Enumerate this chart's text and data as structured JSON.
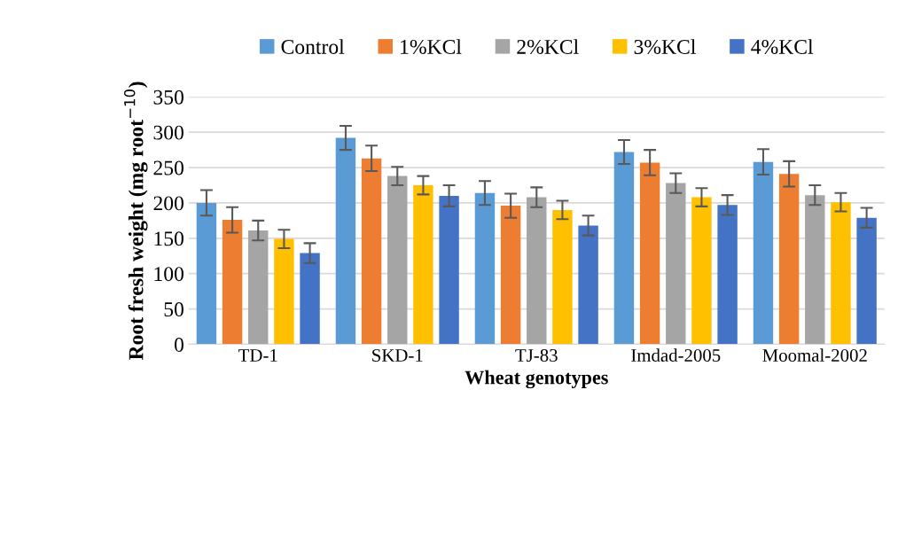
{
  "chart_data": {
    "type": "bar",
    "xlabel": "Wheat genotypes",
    "ylabel": "Root fresh weight (mg root$^{−10}$)",
    "categories": [
      "TD-1",
      "SKD-1",
      "TJ-83",
      "Imdad-2005",
      "Moomal-2002"
    ],
    "series": [
      {
        "name": "Control",
        "color": "#5b9bd5",
        "values": [
          200,
          292,
          214,
          272,
          258
        ],
        "errors": [
          18,
          17,
          17,
          17,
          18
        ]
      },
      {
        "name": "1%KCl",
        "color": "#ed7d31",
        "values": [
          176,
          263,
          196,
          257,
          241
        ],
        "errors": [
          18,
          18,
          17,
          18,
          18
        ]
      },
      {
        "name": "2%KCl",
        "color": "#a5a5a5",
        "values": [
          161,
          238,
          208,
          228,
          211
        ],
        "errors": [
          14,
          13,
          14,
          14,
          14
        ]
      },
      {
        "name": "3%KCl",
        "color": "#ffc000",
        "values": [
          149,
          225,
          190,
          208,
          201
        ],
        "errors": [
          13,
          13,
          13,
          13,
          13
        ]
      },
      {
        "name": "4%KCl",
        "color": "#4472c4",
        "values": [
          129,
          210,
          168,
          197,
          179
        ],
        "errors": [
          14,
          15,
          14,
          14,
          14
        ]
      }
    ],
    "ylim": [
      0,
      350
    ],
    "yticks": [
      0,
      50,
      100,
      150,
      200,
      250,
      300,
      350
    ],
    "grid": "y",
    "legend": "top"
  }
}
